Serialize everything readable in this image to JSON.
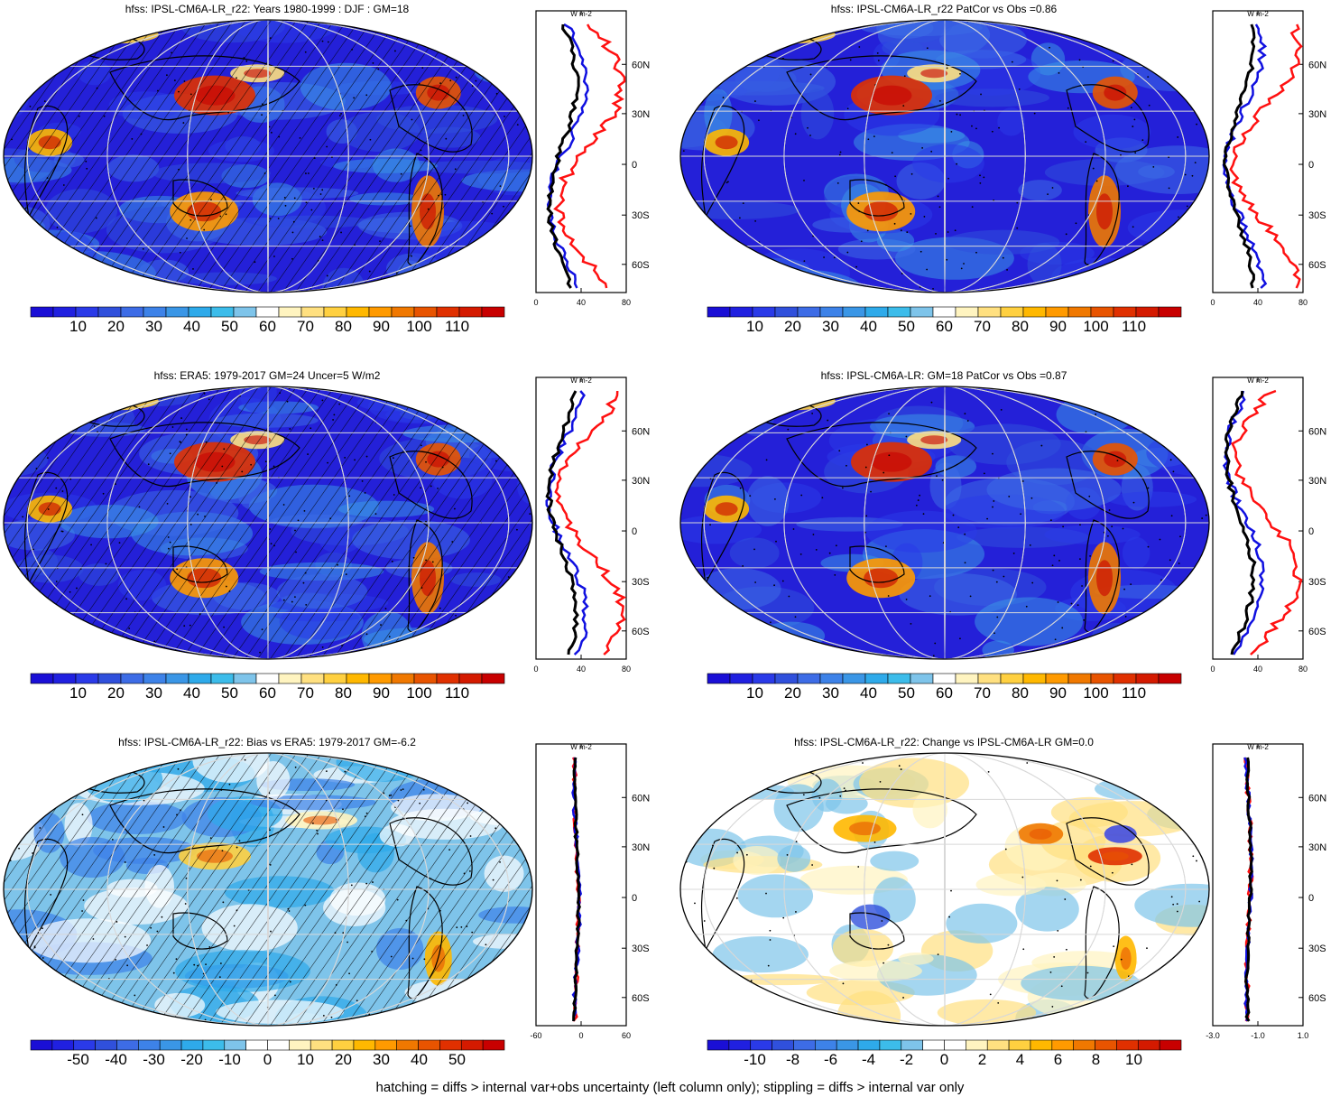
{
  "footer": "hatching = diffs > internal var+obs uncertainty (left column only); stippling = diffs > internal var only",
  "colors": {
    "abs_scale": [
      "#1a0fd6",
      "#2020e0",
      "#2a3ae8",
      "#3050dc",
      "#3d6ce6",
      "#3d82e8",
      "#3a96e6",
      "#2eaaea",
      "#3cbcea",
      "#7ec4ea",
      "#ffffff",
      "#fff4c0",
      "#ffe080",
      "#ffd040",
      "#ffb800",
      "#ff9a00",
      "#f07800",
      "#e85400",
      "#e03000",
      "#d41a00",
      "#c80000"
    ],
    "diff_scale": [
      "#1a0fd6",
      "#2020e0",
      "#2a3ae8",
      "#3050dc",
      "#3d6ce6",
      "#3d82e8",
      "#3a96e6",
      "#2eaaea",
      "#3cbcea",
      "#7ec4ea",
      "#ffffff",
      "#ffffff",
      "#fff4c0",
      "#ffe080",
      "#ffd040",
      "#ffb800",
      "#ff9a00",
      "#f07800",
      "#e85400",
      "#e03000",
      "#d41a00",
      "#c80000"
    ],
    "line_black": "#000000",
    "line_blue": "#1010e0",
    "line_red": "#ff1010"
  },
  "panels": [
    {
      "id": "p1",
      "title": "hfss: IPSL-CM6A-LR_r22: Years 1980-1999 : DJF : GM=18",
      "map_type": "absolute",
      "hatch": true,
      "unit": "W m-2",
      "zonal_xticks": [
        "0",
        "40",
        "80"
      ],
      "zonal_yticks": [
        "60N",
        "30N",
        "0",
        "30S",
        "60S"
      ],
      "colorbar_labels": [
        "10",
        "20",
        "30",
        "40",
        "50",
        "60",
        "70",
        "80",
        "90",
        "100",
        "110"
      ]
    },
    {
      "id": "p2",
      "title": "hfss: IPSL-CM6A-LR_r22 PatCor vs Obs =0.86",
      "map_type": "absolute",
      "hatch": false,
      "unit": "W m-2",
      "zonal_xticks": [
        "0",
        "40",
        "80"
      ],
      "zonal_yticks": [
        "60N",
        "30N",
        "0",
        "30S",
        "60S"
      ],
      "colorbar_labels": [
        "10",
        "20",
        "30",
        "40",
        "50",
        "60",
        "70",
        "80",
        "90",
        "100",
        "110"
      ]
    },
    {
      "id": "p3",
      "title": "hfss: ERA5: 1979-2017 GM=24 Uncer=5 W/m2",
      "map_type": "absolute",
      "hatch": true,
      "unit": "W m-2",
      "zonal_xticks": [
        "0",
        "40",
        "80"
      ],
      "zonal_yticks": [
        "60N",
        "30N",
        "0",
        "30S",
        "60S"
      ],
      "colorbar_labels": [
        "10",
        "20",
        "30",
        "40",
        "50",
        "60",
        "70",
        "80",
        "90",
        "100",
        "110"
      ]
    },
    {
      "id": "p4",
      "title": "hfss: IPSL-CM6A-LR: GM=18 PatCor vs Obs =0.87",
      "map_type": "absolute",
      "hatch": false,
      "unit": "W m-2",
      "zonal_xticks": [
        "0",
        "40",
        "80"
      ],
      "zonal_yticks": [
        "60N",
        "30N",
        "0",
        "30S",
        "60S"
      ],
      "colorbar_labels": [
        "10",
        "20",
        "30",
        "40",
        "50",
        "60",
        "70",
        "80",
        "90",
        "100",
        "110"
      ]
    },
    {
      "id": "p5",
      "title": "hfss: IPSL-CM6A-LR_r22: Bias vs ERA5: 1979-2017 GM=-6.2",
      "map_type": "bias",
      "hatch": true,
      "unit": "W m-2",
      "zonal_xticks": [
        "-60",
        "0",
        "60"
      ],
      "zonal_yticks": [
        "60N",
        "30N",
        "0",
        "30S",
        "60S"
      ],
      "colorbar_labels": [
        "-50",
        "-40",
        "-30",
        "-20",
        "-10",
        "0",
        "10",
        "20",
        "30",
        "40",
        "50"
      ]
    },
    {
      "id": "p6",
      "title": "hfss: IPSL-CM6A-LR_r22: Change vs IPSL-CM6A-LR GM=0.0",
      "map_type": "change",
      "hatch": false,
      "unit": "W m-2",
      "zonal_xticks": [
        "-3.0",
        "-1.0",
        "1.0"
      ],
      "zonal_yticks": [
        "60N",
        "30N",
        "0",
        "30S",
        "60S"
      ],
      "colorbar_labels": [
        "-10",
        "-8",
        "-6",
        "-4",
        "-2",
        "0",
        "2",
        "4",
        "6",
        "8",
        "10"
      ]
    }
  ]
}
